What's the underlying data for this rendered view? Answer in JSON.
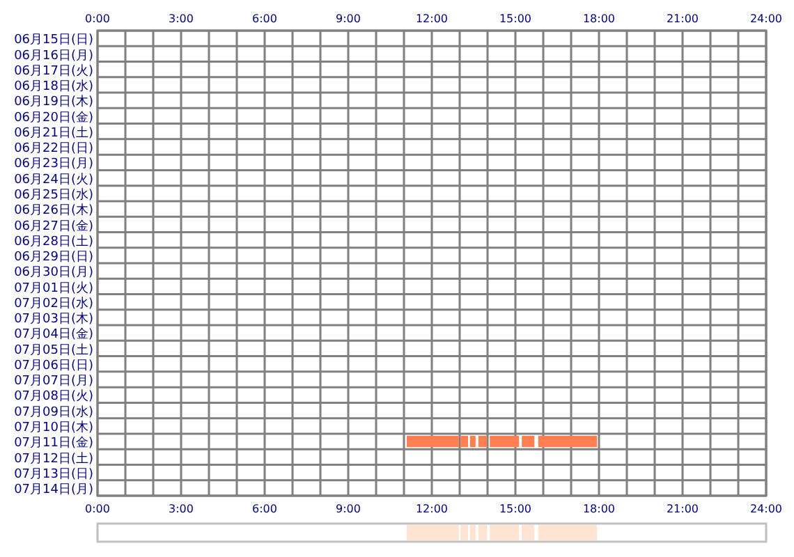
{
  "chart_data": [
    {
      "type": "bar",
      "orientation": "horizontal",
      "grid": true,
      "categories": [
        "06月15日(日)",
        "06月16日(月)",
        "06月17日(火)",
        "06月18日(水)",
        "06月19日(木)",
        "06月20日(金)",
        "06月21日(土)",
        "06月22日(日)",
        "06月23日(月)",
        "06月24日(火)",
        "06月25日(水)",
        "06月26日(木)",
        "06月27日(金)",
        "06月28日(土)",
        "06月29日(日)",
        "06月30日(月)",
        "07月01日(火)",
        "07月02日(水)",
        "07月03日(木)",
        "07月04日(金)",
        "07月05日(土)",
        "07月06日(日)",
        "07月07日(月)",
        "07月08日(火)",
        "07月09日(水)",
        "07月10日(木)",
        "07月11日(金)",
        "07月12日(土)",
        "07月13日(日)",
        "07月14日(月)"
      ],
      "xlim": [
        0,
        24
      ],
      "xticks": [
        {
          "value": 0,
          "label": "0:00"
        },
        {
          "value": 1,
          "label": null
        },
        {
          "value": 2,
          "label": null
        },
        {
          "value": 3,
          "label": "3:00"
        },
        {
          "value": 4,
          "label": null
        },
        {
          "value": 5,
          "label": null
        },
        {
          "value": 6,
          "label": "6:00"
        },
        {
          "value": 7,
          "label": null
        },
        {
          "value": 8,
          "label": null
        },
        {
          "value": 9,
          "label": "9:00"
        },
        {
          "value": 10,
          "label": null
        },
        {
          "value": 11,
          "label": null
        },
        {
          "value": 12,
          "label": "12:00"
        },
        {
          "value": 13,
          "label": null
        },
        {
          "value": 14,
          "label": null
        },
        {
          "value": 15,
          "label": "15:00"
        },
        {
          "value": 16,
          "label": null
        },
        {
          "value": 17,
          "label": null
        },
        {
          "value": 18,
          "label": "18:00"
        },
        {
          "value": 19,
          "label": null
        },
        {
          "value": 20,
          "label": null
        },
        {
          "value": 21,
          "label": "21:00"
        },
        {
          "value": 22,
          "label": null
        },
        {
          "value": 23,
          "label": null
        },
        {
          "value": 24,
          "label": "24:00"
        }
      ],
      "x2lim": [
        0,
        24
      ],
      "x2ticks": [
        {
          "value": 0,
          "label": "0:00"
        },
        {
          "value": 3,
          "label": "3:00"
        },
        {
          "value": 6,
          "label": "6:00"
        },
        {
          "value": 9,
          "label": "9:00"
        },
        {
          "value": 12,
          "label": "12:00"
        },
        {
          "value": 15,
          "label": "15:00"
        },
        {
          "value": 18,
          "label": "18:00"
        },
        {
          "value": 21,
          "label": "21:00"
        },
        {
          "value": 24,
          "label": "24:00"
        }
      ],
      "series": [
        {
          "color": "#ff7f50",
          "values": [
            null,
            null,
            null,
            null,
            null,
            null,
            null,
            null,
            null,
            null,
            null,
            null,
            null,
            null,
            null,
            null,
            null,
            null,
            null,
            null,
            null,
            null,
            null,
            null,
            null,
            null,
            1.87,
            null,
            null,
            null
          ],
          "base": [
            null,
            null,
            null,
            null,
            null,
            null,
            null,
            null,
            null,
            null,
            null,
            null,
            null,
            null,
            null,
            null,
            null,
            null,
            null,
            null,
            null,
            null,
            null,
            null,
            null,
            null,
            11.1,
            null,
            null,
            null
          ]
        },
        {
          "color": "#ff7f50",
          "values": [
            null,
            null,
            null,
            null,
            null,
            null,
            null,
            null,
            null,
            null,
            null,
            null,
            null,
            null,
            null,
            null,
            null,
            null,
            null,
            null,
            null,
            null,
            null,
            null,
            null,
            null,
            0.27,
            null,
            null,
            null
          ],
          "base": [
            null,
            null,
            null,
            null,
            null,
            null,
            null,
            null,
            null,
            null,
            null,
            null,
            null,
            null,
            null,
            null,
            null,
            null,
            null,
            null,
            null,
            null,
            null,
            null,
            null,
            null,
            13.03,
            null,
            null,
            null
          ]
        },
        {
          "color": "#ff7f50",
          "values": [
            null,
            null,
            null,
            null,
            null,
            null,
            null,
            null,
            null,
            null,
            null,
            null,
            null,
            null,
            null,
            null,
            null,
            null,
            null,
            null,
            null,
            null,
            null,
            null,
            null,
            null,
            0.2,
            null,
            null,
            null
          ],
          "base": [
            null,
            null,
            null,
            null,
            null,
            null,
            null,
            null,
            null,
            null,
            null,
            null,
            null,
            null,
            null,
            null,
            null,
            null,
            null,
            null,
            null,
            null,
            null,
            null,
            null,
            null,
            13.37,
            null,
            null,
            null
          ]
        },
        {
          "color": "#ff7f50",
          "values": [
            null,
            null,
            null,
            null,
            null,
            null,
            null,
            null,
            null,
            null,
            null,
            null,
            null,
            null,
            null,
            null,
            null,
            null,
            null,
            null,
            null,
            null,
            null,
            null,
            null,
            null,
            0.31,
            null,
            null,
            null
          ],
          "base": [
            null,
            null,
            null,
            null,
            null,
            null,
            null,
            null,
            null,
            null,
            null,
            null,
            null,
            null,
            null,
            null,
            null,
            null,
            null,
            null,
            null,
            null,
            null,
            null,
            null,
            null,
            13.67,
            null,
            null,
            null
          ]
        },
        {
          "color": "#ff7f50",
          "values": [
            null,
            null,
            null,
            null,
            null,
            null,
            null,
            null,
            null,
            null,
            null,
            null,
            null,
            null,
            null,
            null,
            null,
            null,
            null,
            null,
            null,
            null,
            null,
            null,
            null,
            null,
            1.05,
            null,
            null,
            null
          ],
          "base": [
            null,
            null,
            null,
            null,
            null,
            null,
            null,
            null,
            null,
            null,
            null,
            null,
            null,
            null,
            null,
            null,
            null,
            null,
            null,
            null,
            null,
            null,
            null,
            null,
            null,
            null,
            14.08,
            null,
            null,
            null
          ]
        },
        {
          "color": "#ff7f50",
          "values": [
            null,
            null,
            null,
            null,
            null,
            null,
            null,
            null,
            null,
            null,
            null,
            null,
            null,
            null,
            null,
            null,
            null,
            null,
            null,
            null,
            null,
            null,
            null,
            null,
            null,
            null,
            0.45,
            null,
            null,
            null
          ],
          "base": [
            null,
            null,
            null,
            null,
            null,
            null,
            null,
            null,
            null,
            null,
            null,
            null,
            null,
            null,
            null,
            null,
            null,
            null,
            null,
            null,
            null,
            null,
            null,
            null,
            null,
            null,
            15.23,
            null,
            null,
            null
          ]
        },
        {
          "color": "#ff7f50",
          "values": [
            null,
            null,
            null,
            null,
            null,
            null,
            null,
            null,
            null,
            null,
            null,
            null,
            null,
            null,
            null,
            null,
            null,
            null,
            null,
            null,
            null,
            null,
            null,
            null,
            null,
            null,
            2.11,
            null,
            null,
            null
          ],
          "base": [
            null,
            null,
            null,
            null,
            null,
            null,
            null,
            null,
            null,
            null,
            null,
            null,
            null,
            null,
            null,
            null,
            null,
            null,
            null,
            null,
            null,
            null,
            null,
            null,
            null,
            null,
            15.82,
            null,
            null,
            null
          ]
        }
      ]
    },
    {
      "type": "bar",
      "orientation": "horizontal",
      "categories": [
        null
      ],
      "xlim": [
        0,
        24
      ],
      "series": [
        {
          "color": "#ffe4d4",
          "values": [
            1.87
          ],
          "base": [
            11.1
          ]
        },
        {
          "color": "#ffe4d4",
          "values": [
            0.27
          ],
          "base": [
            13.03
          ]
        },
        {
          "color": "#ffe4d4",
          "values": [
            0.2
          ],
          "base": [
            13.37
          ]
        },
        {
          "color": "#ffe4d4",
          "values": [
            0.31
          ],
          "base": [
            13.67
          ]
        },
        {
          "color": "#ffe4d4",
          "values": [
            1.05
          ],
          "base": [
            14.08
          ]
        },
        {
          "color": "#ffe4d4",
          "values": [
            0.45
          ],
          "base": [
            15.23
          ]
        },
        {
          "color": "#ffe4d4",
          "values": [
            2.11
          ],
          "base": [
            15.82
          ]
        }
      ]
    }
  ]
}
